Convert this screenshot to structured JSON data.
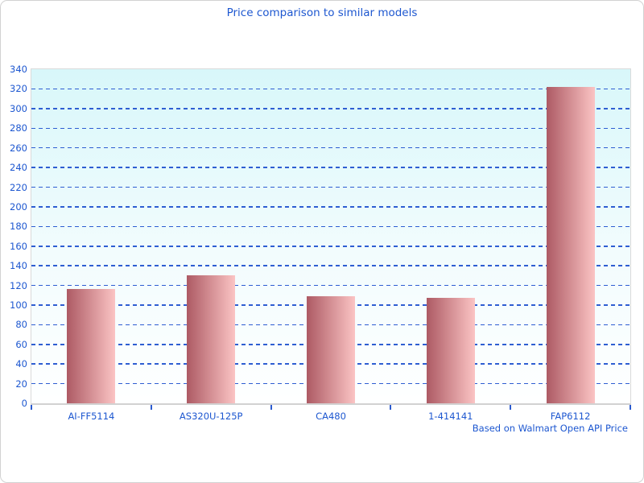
{
  "chart_data": {
    "type": "bar",
    "title": "Price comparison to similar models",
    "categories": [
      "AI-FF5114",
      "AS320U-125P",
      "CA480",
      "1-414141",
      "FAP6112"
    ],
    "values": [
      116,
      130,
      109,
      107,
      322
    ],
    "xlabel": "",
    "ylabel": "",
    "ylim": [
      0,
      340
    ],
    "ytick_step": 20,
    "grid": "horizontal-dashed",
    "legend": "none",
    "annotation": "Based on Walmart Open API Price",
    "colors": {
      "text": "#1d57d0",
      "gridline": "#2e5ed2",
      "tick": "#2b5bd0",
      "bar_gradient_left": "#ad5a64",
      "bar_gradient_right": "#fbc4c4",
      "plot_bg_top": "#d8f7fa",
      "plot_bg_bottom": "#feffff",
      "axis_line": "#d2d2d2",
      "card_border": "#d2d2d2"
    }
  }
}
